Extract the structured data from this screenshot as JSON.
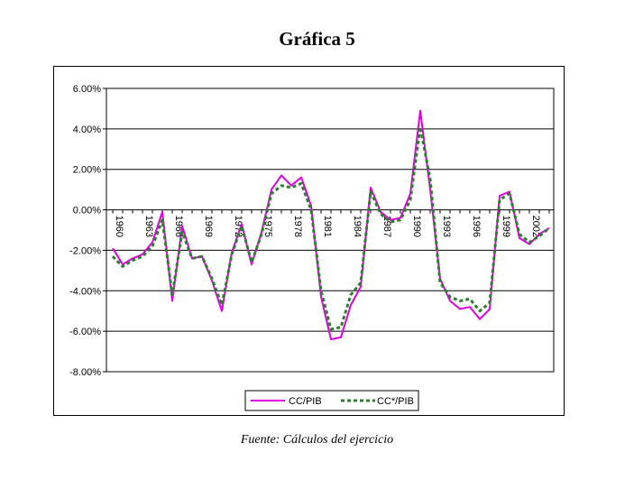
{
  "title": "Gráfica 5",
  "source": "Fuente: Cálculos del ejercicio",
  "chart_data": {
    "type": "line",
    "ylim": [
      -8,
      6
    ],
    "yticks": [
      6,
      4,
      2,
      0,
      -2,
      -4,
      -6,
      -8
    ],
    "ytick_labels": [
      "6.00%",
      "4.00%",
      "2.00%",
      "0.00%",
      "-2.00%",
      "-4.00%",
      "-6.00%",
      "-8.00%"
    ],
    "x": [
      1960,
      1961,
      1962,
      1963,
      1964,
      1965,
      1966,
      1967,
      1968,
      1969,
      1970,
      1971,
      1972,
      1973,
      1974,
      1975,
      1976,
      1977,
      1978,
      1979,
      1980,
      1981,
      1982,
      1983,
      1984,
      1985,
      1986,
      1987,
      1988,
      1989,
      1990,
      1991,
      1992,
      1993,
      1994,
      1995,
      1996,
      1997,
      1998,
      1999,
      2000,
      2001,
      2002,
      2003,
      2004
    ],
    "xtick_labels": [
      "1960",
      "1963",
      "1966",
      "1969",
      "1972",
      "1975",
      "1978",
      "1981",
      "1984",
      "1987",
      "1990",
      "1993",
      "1996",
      "1999",
      "2002"
    ],
    "xtick_values": [
      1960,
      1963,
      1966,
      1969,
      1972,
      1975,
      1978,
      1981,
      1984,
      1987,
      1990,
      1993,
      1996,
      1999,
      2002
    ],
    "grid": true,
    "legend_position": "bottom",
    "series": [
      {
        "name": "CC/PIB",
        "color": "#e000e0",
        "style": "solid",
        "values": [
          -1.9,
          -2.7,
          -2.4,
          -2.2,
          -1.6,
          -0.1,
          -4.5,
          -0.8,
          -2.4,
          -2.3,
          -3.5,
          -5.0,
          -2.1,
          -0.7,
          -2.7,
          -1.1,
          1.0,
          1.7,
          1.2,
          1.6,
          0.2,
          -4.3,
          -6.4,
          -6.3,
          -4.7,
          -3.8,
          1.1,
          -0.1,
          -0.5,
          -0.4,
          0.8,
          4.9,
          1.0,
          -3.4,
          -4.5,
          -4.9,
          -4.8,
          -5.4,
          -4.9,
          0.7,
          0.9,
          -1.4,
          -1.7,
          -1.2,
          -0.9
        ]
      },
      {
        "name": "CC*/PIB",
        "color": "#2e7d32",
        "style": "dashed",
        "values": [
          -2.3,
          -2.8,
          -2.5,
          -2.3,
          -1.8,
          -0.5,
          -4.2,
          -1.1,
          -2.4,
          -2.3,
          -3.4,
          -4.7,
          -2.2,
          -0.8,
          -2.6,
          -1.2,
          0.8,
          1.2,
          1.1,
          1.3,
          0.0,
          -4.0,
          -5.9,
          -5.8,
          -4.2,
          -3.6,
          0.9,
          -0.2,
          -0.6,
          -0.5,
          0.5,
          4.1,
          1.5,
          -3.6,
          -4.3,
          -4.5,
          -4.4,
          -5.0,
          -4.6,
          0.5,
          0.8,
          -1.2,
          -1.6,
          -1.3,
          -0.9
        ]
      }
    ]
  }
}
